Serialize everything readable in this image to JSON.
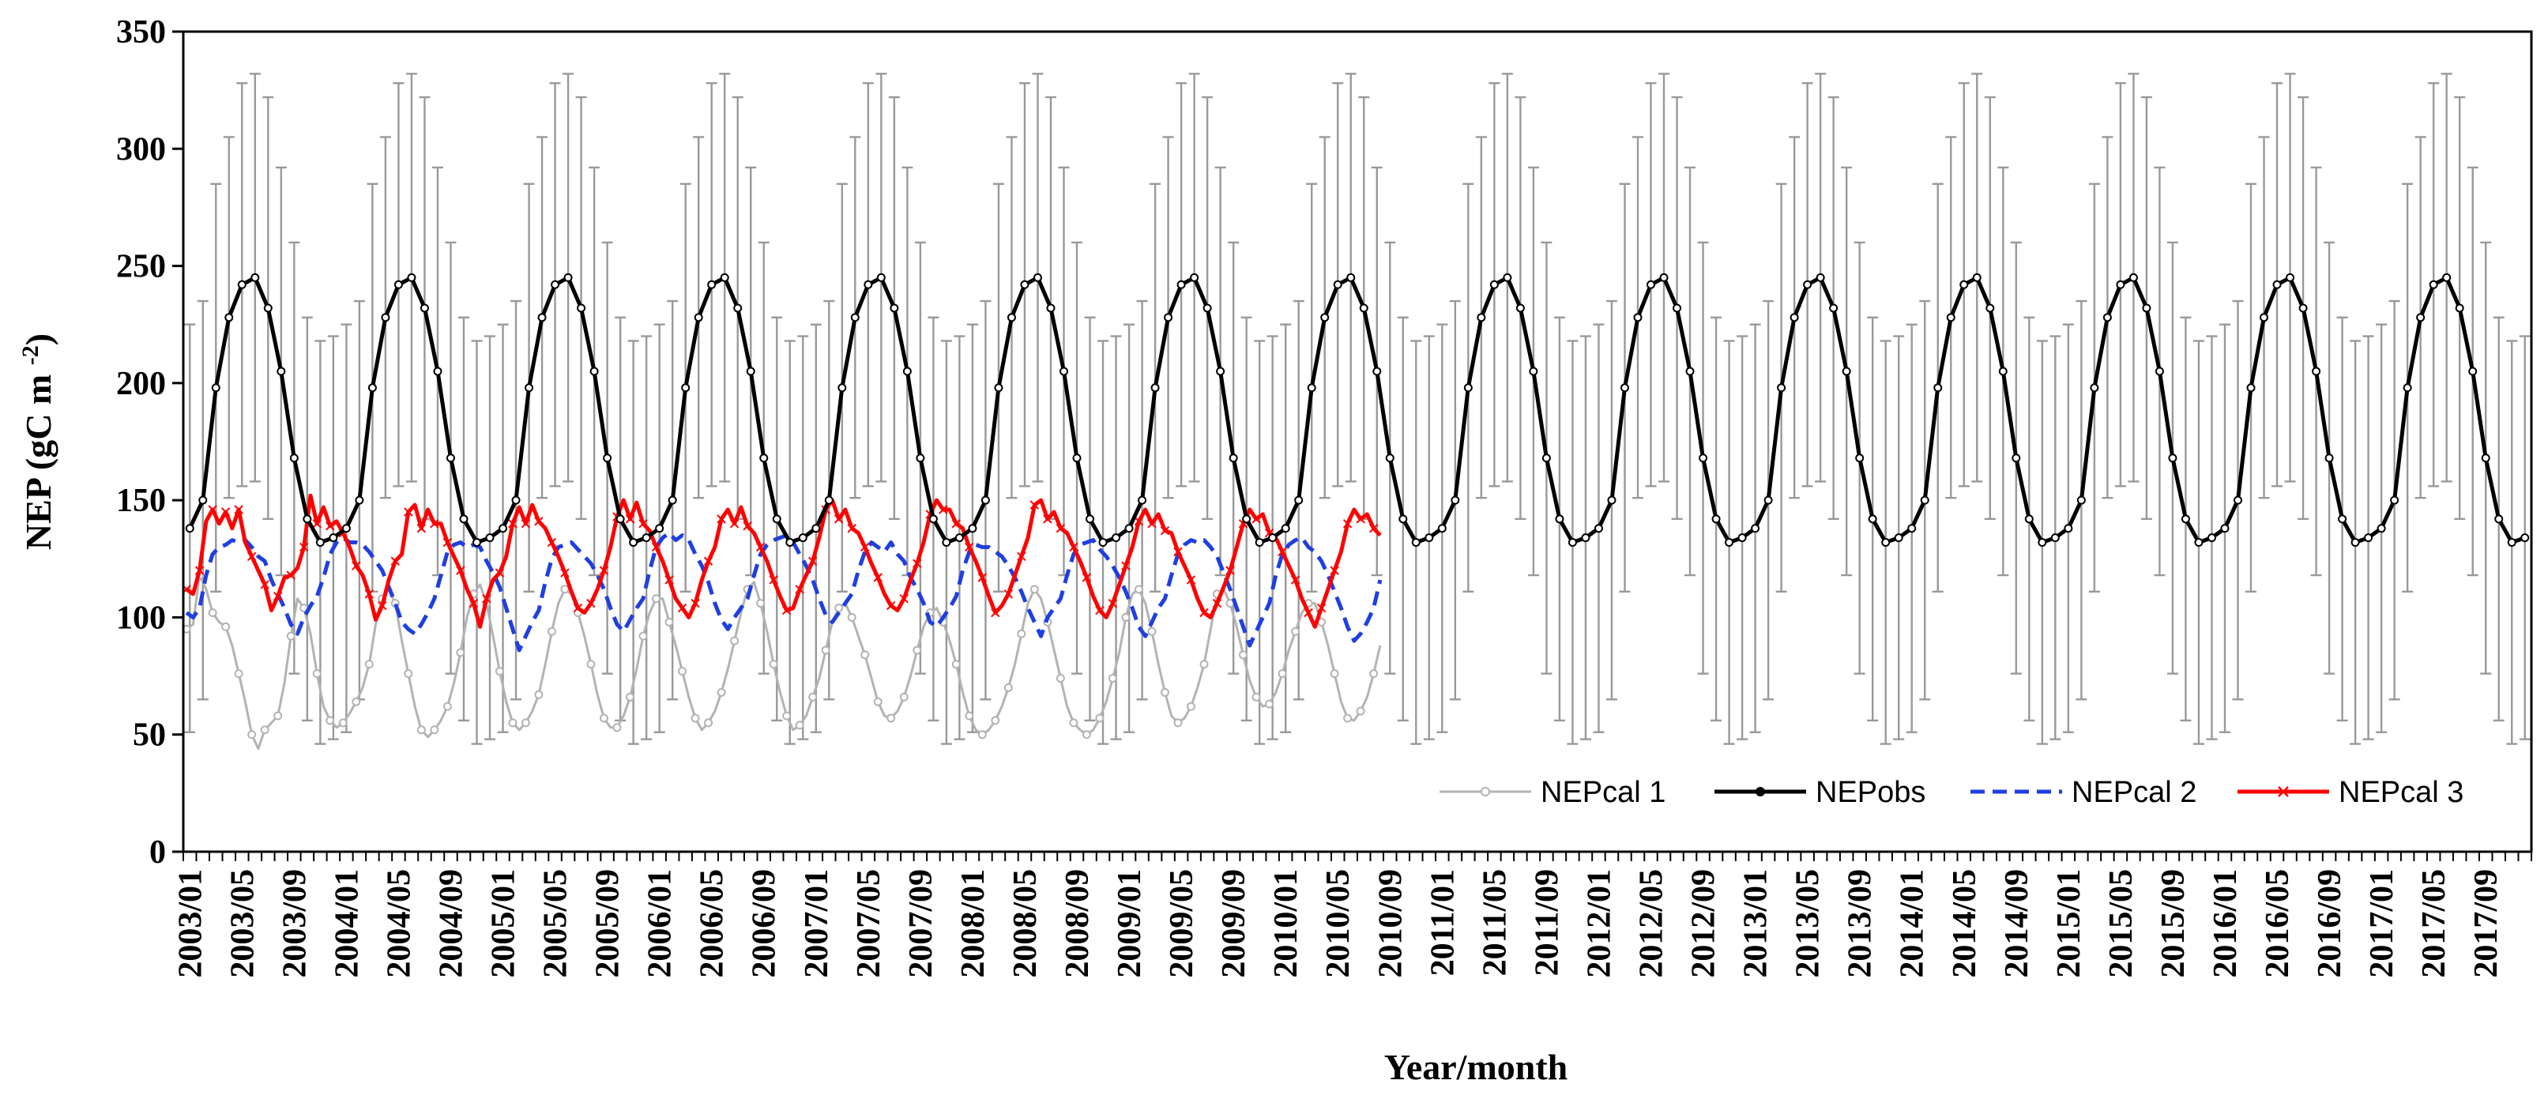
{
  "chart_data": {
    "type": "line",
    "title": "",
    "xlabel": "Year/month",
    "ylabel": "NEP (gC m-2)",
    "ylabel_main": "NEP (gC m",
    "ylabel_sup": "-2",
    "ylabel_close": ")",
    "ylim": [
      0,
      350
    ],
    "yticks": [
      0,
      50,
      100,
      150,
      200,
      250,
      300,
      350
    ],
    "grid": false,
    "legend_position": "bottom-right",
    "years": [
      2003,
      2004,
      2005,
      2006,
      2007,
      2008,
      2009,
      2010,
      2011,
      2012,
      2013,
      2014,
      2015,
      2016,
      2017
    ],
    "x_tick_labels": [
      "2003/01",
      "2003/05",
      "2003/09",
      "2004/01",
      "2004/05",
      "2004/09",
      "2005/01",
      "2005/05",
      "2005/09",
      "2006/01",
      "2006/05",
      "2006/09",
      "2007/01",
      "2007/05",
      "2007/09",
      "2008/01",
      "2008/05",
      "2008/09",
      "2009/01",
      "2009/05",
      "2009/09",
      "2010/01",
      "2010/05",
      "2010/09",
      "2011/01",
      "2011/05",
      "2011/09",
      "2012/01",
      "2012/05",
      "2012/09",
      "2013/01",
      "2013/05",
      "2013/09",
      "2014/01",
      "2014/05",
      "2014/09",
      "2015/01",
      "2015/05",
      "2015/09",
      "2016/01",
      "2016/05",
      "2016/09",
      "2017/01",
      "2017/05",
      "2017/09"
    ],
    "series": [
      {
        "name": "NEPcal 1",
        "color": "#b3b3b3",
        "dash": "solid",
        "marker": "circle",
        "semimonthly": [
          95,
          97,
          118,
          112,
          102,
          98,
          96,
          88,
          76,
          64,
          50,
          44,
          52,
          55,
          58,
          72,
          92,
          108,
          104,
          93,
          76,
          62,
          56,
          53,
          55,
          59,
          64,
          70,
          80,
          97,
          108,
          112,
          106,
          90,
          76,
          62,
          52,
          49,
          52,
          56,
          62,
          72,
          85,
          100,
          110,
          114,
          106,
          92,
          77,
          64,
          55,
          52,
          55,
          60,
          67,
          80,
          94,
          106,
          112,
          110,
          102,
          92,
          80,
          67,
          57,
          53,
          53,
          58,
          66,
          78,
          92,
          102,
          108,
          108,
          98,
          88,
          77,
          66,
          57,
          52,
          55,
          60,
          68,
          78,
          90,
          102,
          112,
          115,
          106,
          94,
          80,
          68,
          58,
          52,
          54,
          58,
          66,
          74,
          86,
          98,
          104,
          106,
          100,
          92,
          84,
          74,
          64,
          58,
          57,
          60,
          66,
          75,
          86,
          96,
          102,
          104,
          98,
          90,
          80,
          68,
          58,
          52,
          50,
          52,
          56,
          62,
          70,
          80,
          93,
          106,
          112,
          108,
          98,
          86,
          74,
          62,
          55,
          52,
          50,
          52,
          57,
          64,
          74,
          85,
          100,
          110,
          112,
          106,
          94,
          80,
          68,
          58,
          55,
          57,
          62,
          70,
          80,
          95,
          110,
          112,
          106,
          96,
          84,
          73,
          66,
          62,
          63,
          68,
          76,
          86,
          94,
          102,
          106,
          106,
          98,
          88,
          76,
          64,
          57,
          56,
          60,
          66,
          76,
          88
        ]
      },
      {
        "name": "NEPobs",
        "color": "#000000",
        "dash": "solid",
        "marker": "dot",
        "monthly_mean": [
          138,
          150,
          198,
          228,
          242,
          245,
          232,
          205,
          168,
          142,
          132,
          134
        ],
        "error_upper": [
          225,
          235,
          285,
          305,
          328,
          332,
          322,
          292,
          260,
          228,
          218,
          220
        ]
      },
      {
        "name": "NEPcal 2",
        "color": "#1f3fe0",
        "dash": "dashed",
        "marker": "none",
        "semimonthly": [
          102,
          100,
          104,
          118,
          127,
          130,
          131,
          133,
          132,
          133,
          130,
          126,
          124,
          116,
          110,
          104,
          97,
          93,
          100,
          105,
          109,
          117,
          127,
          132,
          134,
          132,
          132,
          131,
          128,
          124,
          120,
          113,
          106,
          98,
          95,
          93,
          97,
          102,
          108,
          118,
          128,
          131,
          132,
          130,
          131,
          130,
          124,
          119,
          113,
          104,
          95,
          86,
          92,
          98,
          103,
          115,
          125,
          130,
          131,
          132,
          129,
          126,
          123,
          118,
          112,
          104,
          97,
          94,
          99,
          104,
          108,
          120,
          130,
          134,
          136,
          133,
          135,
          133,
          127,
          122,
          115,
          106,
          99,
          95,
          100,
          104,
          108,
          118,
          127,
          131,
          133,
          134,
          135,
          132,
          127,
          122,
          116,
          108,
          101,
          98,
          102,
          106,
          110,
          120,
          128,
          132,
          130,
          128,
          132,
          127,
          124,
          117,
          112,
          106,
          98,
          96,
          100,
          104,
          109,
          120,
          128,
          131,
          130,
          130,
          128,
          126,
          122,
          117,
          111,
          104,
          98,
          92,
          100,
          104,
          108,
          118,
          127,
          131,
          132,
          133,
          129,
          126,
          122,
          117,
          111,
          104,
          96,
          92,
          98,
          104,
          108,
          118,
          127,
          131,
          133,
          132,
          133,
          130,
          126,
          119,
          112,
          104,
          96,
          88,
          94,
          100,
          106,
          118,
          127,
          131,
          133,
          134,
          130,
          128,
          124,
          118,
          111,
          104,
          96,
          90,
          93,
          98,
          104,
          116
        ]
      },
      {
        "name": "NEPcal 3",
        "color": "#ff0000",
        "dash": "solid",
        "marker": "cross",
        "semimonthly": [
          112,
          110,
          120,
          141,
          146,
          140,
          145,
          138,
          146,
          132,
          126,
          120,
          114,
          103,
          109,
          117,
          118,
          121,
          130,
          152,
          140,
          147,
          139,
          141,
          136,
          130,
          122,
          118,
          110,
          99,
          105,
          116,
          124,
          127,
          145,
          148,
          138,
          146,
          140,
          140,
          132,
          126,
          120,
          112,
          106,
          96,
          108,
          116,
          119,
          126,
          140,
          147,
          140,
          148,
          141,
          138,
          132,
          126,
          119,
          111,
          104,
          102,
          106,
          112,
          120,
          130,
          143,
          150,
          142,
          149,
          140,
          137,
          130,
          124,
          116,
          108,
          104,
          100,
          106,
          116,
          124,
          130,
          142,
          146,
          140,
          147,
          139,
          136,
          130,
          124,
          116,
          109,
          103,
          104,
          112,
          118,
          124,
          134,
          146,
          150,
          142,
          146,
          138,
          136,
          130,
          123,
          117,
          110,
          105,
          103,
          108,
          116,
          123,
          132,
          144,
          150,
          146,
          146,
          140,
          138,
          130,
          124,
          117,
          109,
          102,
          105,
          110,
          118,
          126,
          134,
          148,
          150,
          142,
          145,
          138,
          136,
          130,
          124,
          117,
          109,
          103,
          100,
          106,
          114,
          122,
          130,
          141,
          146,
          140,
          144,
          137,
          136,
          128,
          122,
          116,
          108,
          102,
          100,
          106,
          113,
          120,
          130,
          140,
          146,
          142,
          144,
          136,
          134,
          128,
          122,
          116,
          108,
          102,
          96,
          104,
          112,
          120,
          128,
          140,
          146,
          142,
          144,
          138,
          135
        ]
      }
    ]
  }
}
